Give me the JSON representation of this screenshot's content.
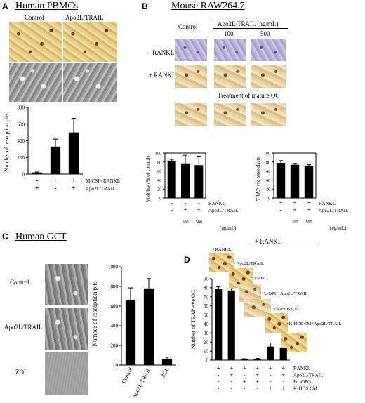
{
  "panel_a": {
    "letter": "A",
    "title": "Human PBMCs",
    "col_labels": [
      "Control",
      "Apo2L/TRAIL"
    ],
    "chart_data": {
      "type": "bar",
      "ylabel": "Number of resorption pits",
      "ylim": [
        0,
        800
      ],
      "yticks": [
        "0",
        "200",
        "400",
        "600",
        "800"
      ],
      "values": [
        20,
        330,
        500
      ],
      "errors": [
        5,
        90,
        170
      ],
      "rows": [
        {
          "label": "M-CSF+RANKL",
          "signs": [
            "-",
            "+",
            "+"
          ]
        },
        {
          "label": "Apo2L/TRAIL",
          "signs": [
            "+",
            "-",
            "+"
          ]
        }
      ]
    }
  },
  "panel_b": {
    "letter": "B",
    "title": "Mouse RAW264.7",
    "header_control": "Control",
    "header_trail": "Apo2L/TRAIL (ng/mL)",
    "doses": [
      "100",
      "500"
    ],
    "row_labels": [
      "- RANKL",
      "+ RANKL"
    ],
    "mature_label": "Treatment of mature OC",
    "chart_viability": {
      "type": "bar",
      "ylabel": "Viability (% of control)",
      "ylim": [
        0,
        100
      ],
      "yticks": [
        "0",
        "20",
        "40",
        "60",
        "80",
        "100"
      ],
      "values": [
        83,
        77,
        73
      ],
      "errors": [
        3,
        18,
        20
      ],
      "rows": [
        {
          "label": "RANKL",
          "signs": [
            "-",
            "-",
            "-"
          ]
        },
        {
          "label": "Apo2L/TRAIL",
          "signs": [
            "-",
            "+",
            "+"
          ]
        }
      ],
      "doses": [
        "100",
        "500"
      ],
      "unit": "(ng/mL)"
    },
    "chart_trap": {
      "type": "bar",
      "ylabel": "TRAP +ve osteoclasts",
      "ylim": [
        0,
        100
      ],
      "yticks": [
        "0",
        "20",
        "40",
        "60",
        "80",
        "100"
      ],
      "values": [
        78,
        74,
        72
      ],
      "errors": [
        5,
        3,
        2
      ],
      "rows": [
        {
          "label": "RANKL",
          "signs": [
            "+",
            "+",
            "+"
          ]
        },
        {
          "label": "Apo2L/TRAIL",
          "signs": [
            "-",
            "+",
            "+"
          ]
        }
      ],
      "doses": [
        "100",
        "500"
      ],
      "unit": "(ng/mL)"
    }
  },
  "panel_c": {
    "letter": "C",
    "title": "Human GCT",
    "row_labels": [
      "Control",
      "Apo2L/TRAIL",
      "ZOL"
    ],
    "chart_data": {
      "type": "bar",
      "ylabel": "Number of resorption pits",
      "ylim": [
        0,
        1000
      ],
      "yticks": [
        "0",
        "200",
        "400",
        "600",
        "800",
        "1000"
      ],
      "categories": [
        "Control",
        "Apo2L/TRAIL",
        "ZOL"
      ],
      "values": [
        665,
        780,
        60
      ],
      "errors": [
        120,
        100,
        20
      ]
    }
  },
  "panel_d": {
    "letter": "D",
    "header": "+ RANKL",
    "photo_labels": [
      "+RANKL",
      "+Apo2L/TRAIL",
      "+Fc-OPG",
      "+Fc-OPG+Apo2L/TRAIL",
      "+K-HOS CM",
      "+K-HOS CM+Apo2L/TRAIL"
    ],
    "chart_data": {
      "type": "bar",
      "ylabel": "Number of TRAP +ve OC",
      "ylim": [
        0,
        90
      ],
      "yticks": [
        "0",
        "10",
        "20",
        "30",
        "40",
        "50",
        "60",
        "70",
        "80",
        "90"
      ],
      "values": [
        79,
        77,
        1,
        1,
        15,
        14
      ],
      "errors": [
        2,
        2,
        0.5,
        1,
        4,
        0
      ],
      "rows": [
        {
          "label": "RANKL",
          "signs": [
            "+",
            "+",
            "+",
            "+",
            "+",
            "+"
          ]
        },
        {
          "label": "Apo2L/TRAIL",
          "signs": [
            "-",
            "+",
            "-",
            "+",
            "-",
            "+"
          ]
        },
        {
          "label": "Fc -OPG",
          "signs": [
            "-",
            "-",
            "+",
            "+",
            "-",
            "-"
          ]
        },
        {
          "label": "K-HOS CM",
          "signs": [
            "-",
            "-",
            "-",
            "-",
            "+",
            "+"
          ]
        }
      ]
    }
  }
}
